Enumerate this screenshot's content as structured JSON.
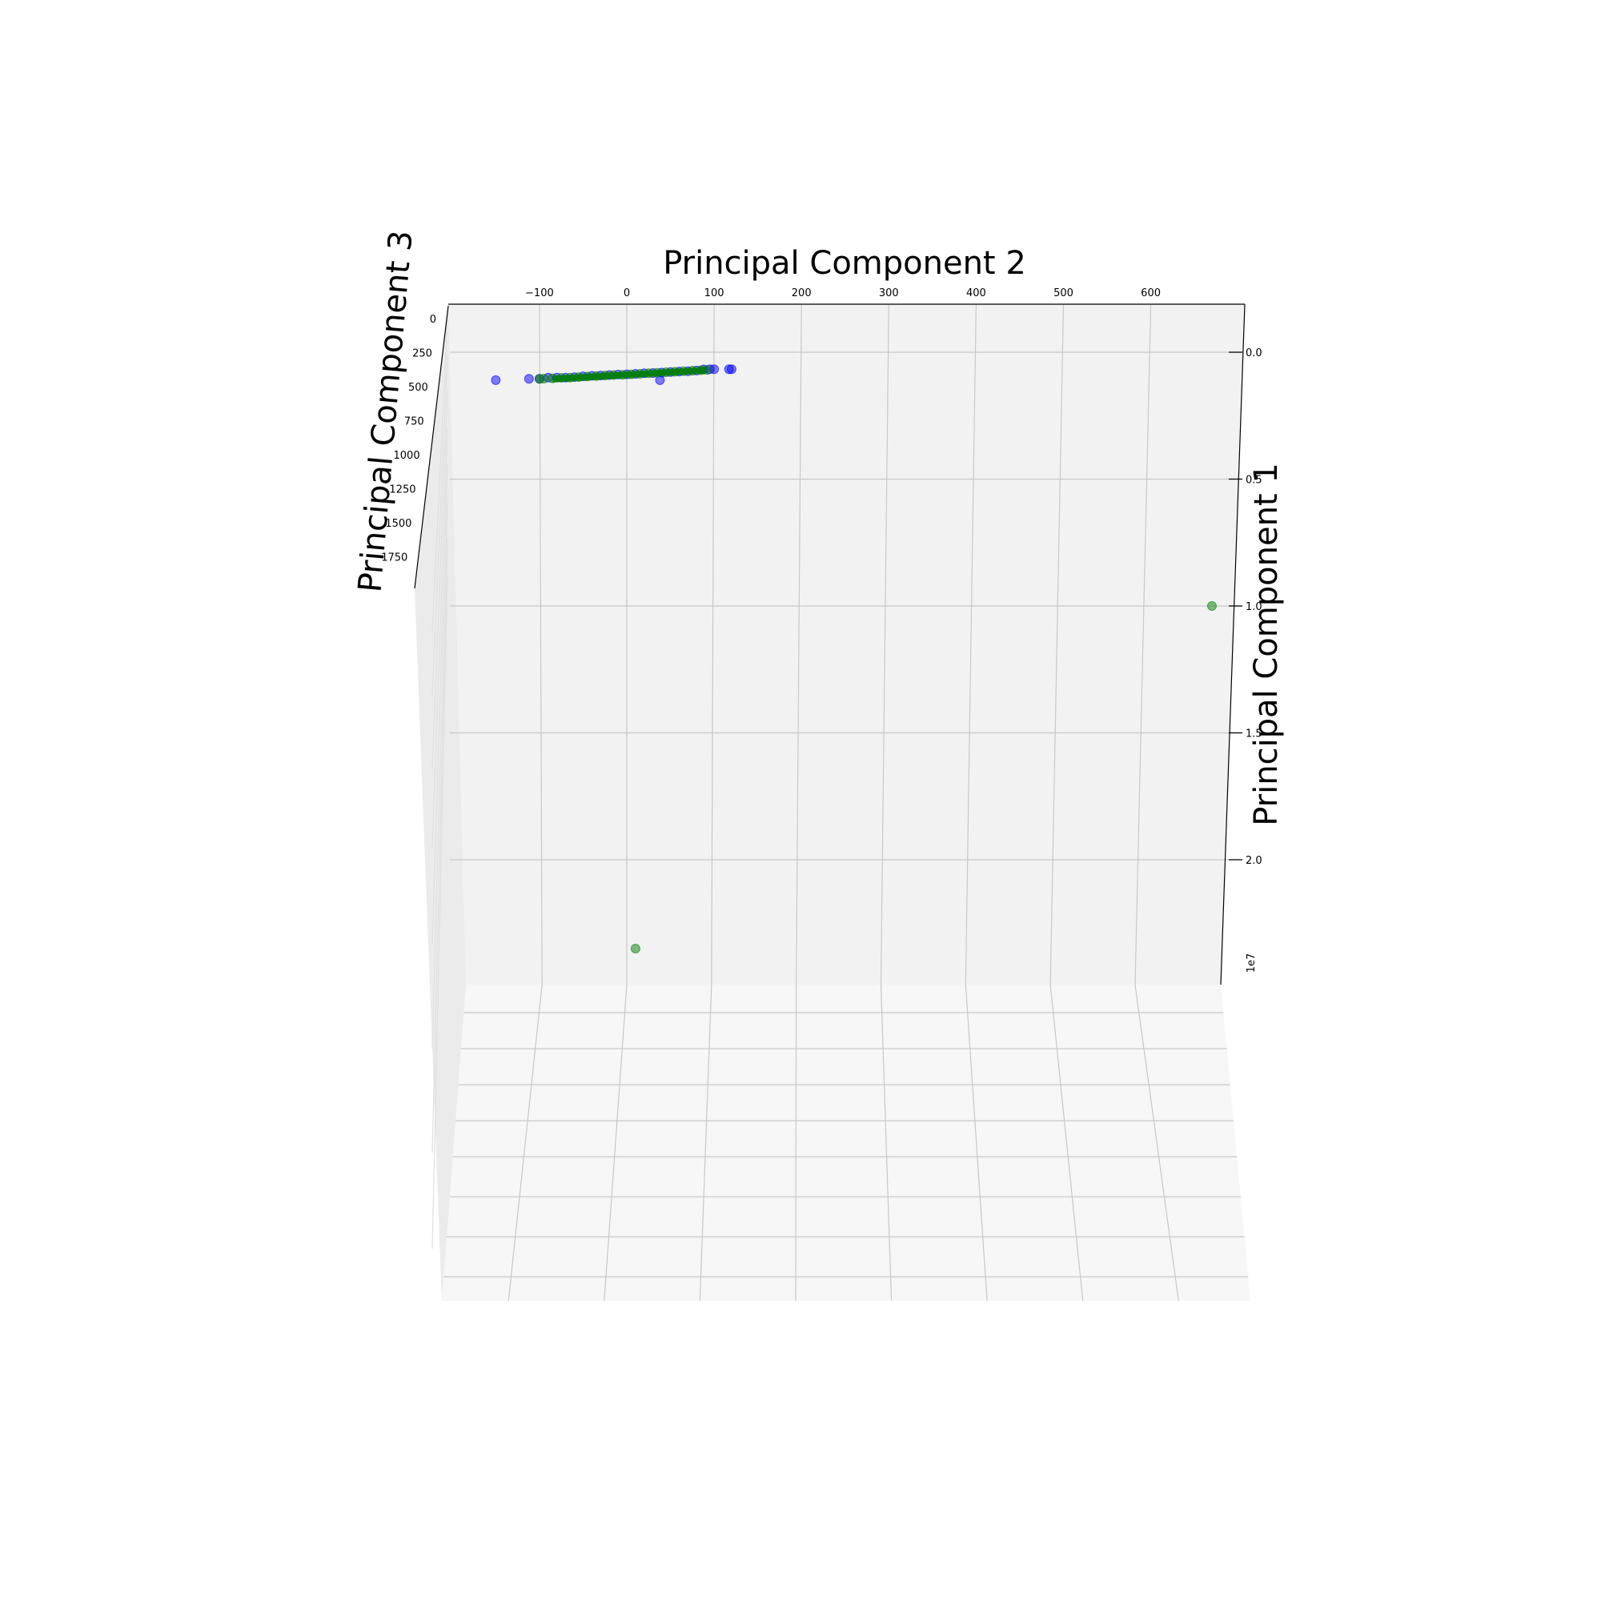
{
  "chart_data": {
    "type": "scatter",
    "projection": "3d",
    "axes": {
      "x": {
        "label": "Principal Component 2",
        "ticks": [
          "−100",
          "0",
          "100",
          "200",
          "300",
          "400",
          "500",
          "600"
        ],
        "tick_values": [
          -100,
          0,
          100,
          200,
          300,
          400,
          500,
          600
        ]
      },
      "y": {
        "label": "Principal Component 1",
        "ticks": [
          "0.0",
          "0.5",
          "1.0",
          "1.5",
          "2.0"
        ],
        "tick_values": [
          0.0,
          0.5,
          1.0,
          1.5,
          2.0
        ],
        "offset_text": "1e7"
      },
      "z": {
        "label": "Principal Component 3",
        "ticks": [
          "0",
          "250",
          "500",
          "750",
          "1000",
          "1250",
          "1500",
          "1750"
        ],
        "tick_values": [
          0,
          250,
          500,
          750,
          1000,
          1250,
          1500,
          1750
        ]
      }
    },
    "grid": true,
    "series": [
      {
        "color": "#0000ff",
        "points": [
          [
            -150,
            0.11
          ],
          [
            -112,
            0.105
          ],
          [
            -100,
            0.105
          ],
          [
            -90,
            0.1
          ],
          [
            -80,
            0.1
          ],
          [
            -70,
            0.1
          ],
          [
            -60,
            0.098
          ],
          [
            -50,
            0.095
          ],
          [
            -40,
            0.093
          ],
          [
            -30,
            0.092
          ],
          [
            -20,
            0.09
          ],
          [
            -10,
            0.088
          ],
          [
            0,
            0.087
          ],
          [
            10,
            0.085
          ],
          [
            20,
            0.083
          ],
          [
            30,
            0.082
          ],
          [
            38,
            0.11
          ],
          [
            40,
            0.08
          ],
          [
            50,
            0.078
          ],
          [
            60,
            0.076
          ],
          [
            70,
            0.075
          ],
          [
            80,
            0.072
          ],
          [
            88,
            0.068
          ],
          [
            95,
            0.067
          ],
          [
            100,
            0.067
          ],
          [
            117,
            0.067
          ],
          [
            120,
            0.067
          ]
        ]
      },
      {
        "color": "#008000",
        "points": [
          [
            -100,
            0.105
          ],
          [
            -95,
            0.104
          ],
          [
            -85,
            0.103
          ],
          [
            -75,
            0.101
          ],
          [
            -65,
            0.1
          ],
          [
            -55,
            0.098
          ],
          [
            -45,
            0.096
          ],
          [
            -35,
            0.094
          ],
          [
            -25,
            0.092
          ],
          [
            -15,
            0.09
          ],
          [
            -5,
            0.089
          ],
          [
            5,
            0.087
          ],
          [
            15,
            0.085
          ],
          [
            25,
            0.083
          ],
          [
            35,
            0.081
          ],
          [
            45,
            0.079
          ],
          [
            55,
            0.077
          ],
          [
            65,
            0.075
          ],
          [
            75,
            0.073
          ],
          [
            85,
            0.071
          ],
          [
            92,
            0.07
          ],
          [
            670,
            1.0
          ],
          [
            10,
            2.35
          ]
        ]
      }
    ]
  }
}
